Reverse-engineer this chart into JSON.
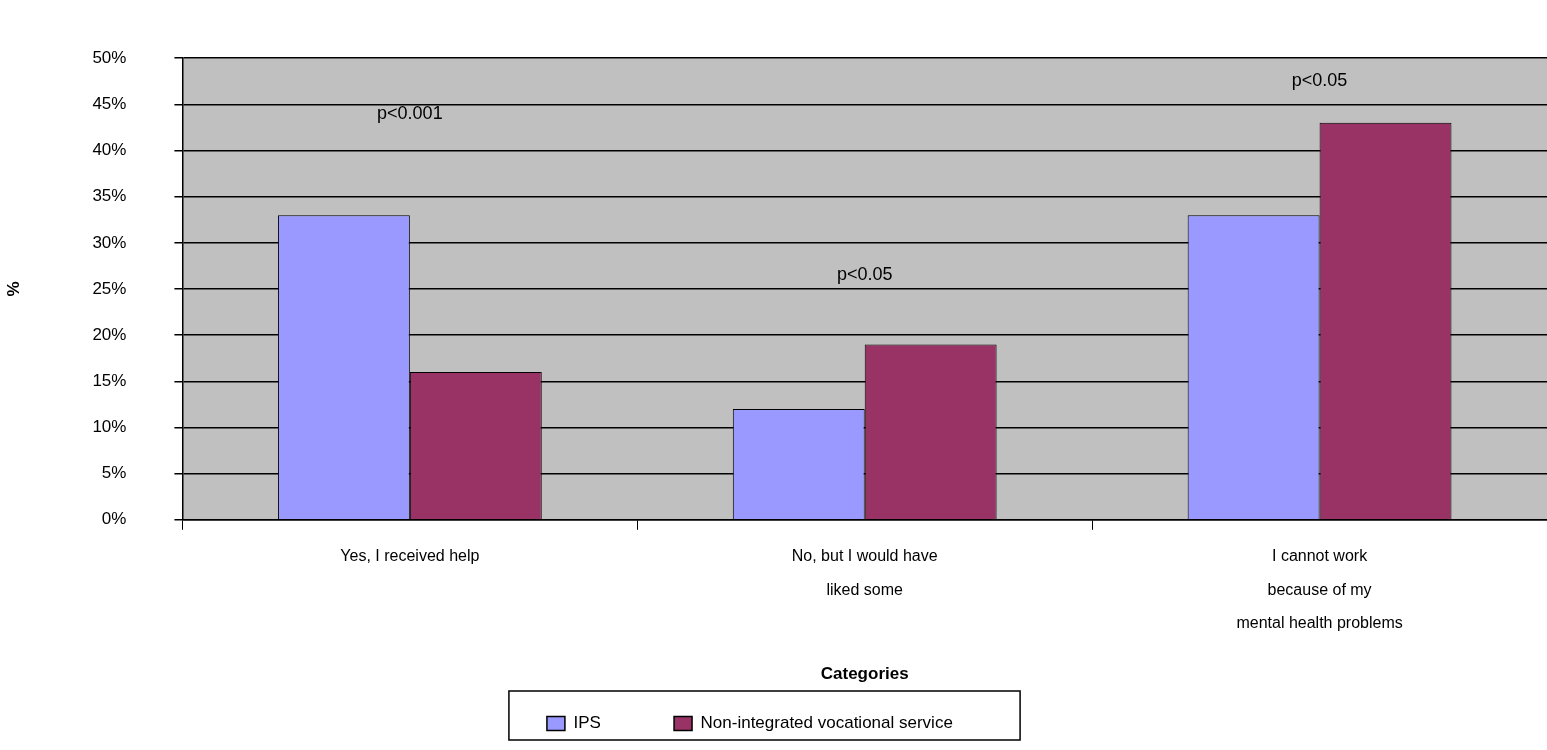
{
  "chart_data": {
    "type": "bar",
    "xlabel": "Categories",
    "ylabel": "%",
    "categories": [
      "Yes, I received help",
      "No, but I would have\nliked some",
      "I cannot work\nbecause of my\nmental health problems"
    ],
    "series": [
      {
        "name": "IPS",
        "color": "#9999ff",
        "values": [
          33,
          12,
          33
        ]
      },
      {
        "name": "Non-integrated vocational service",
        "color": "#993366",
        "values": [
          16,
          19,
          43
        ]
      }
    ],
    "ylim": [
      0,
      50
    ],
    "yticks": [
      {
        "value": 0,
        "label": "0%"
      },
      {
        "value": 5,
        "label": "5%"
      },
      {
        "value": 10,
        "label": "10%"
      },
      {
        "value": 15,
        "label": "15%"
      },
      {
        "value": 20,
        "label": "20%"
      },
      {
        "value": 25,
        "label": "25%"
      },
      {
        "value": 30,
        "label": "30%"
      },
      {
        "value": 35,
        "label": "35%"
      },
      {
        "value": 40,
        "label": "40%"
      },
      {
        "value": 45,
        "label": "45%"
      },
      {
        "value": 50,
        "label": "50%"
      }
    ],
    "grid": "y",
    "legend": "bottom",
    "annotations": [
      "p<0.001",
      "p<0.05",
      "p<0.05"
    ]
  }
}
